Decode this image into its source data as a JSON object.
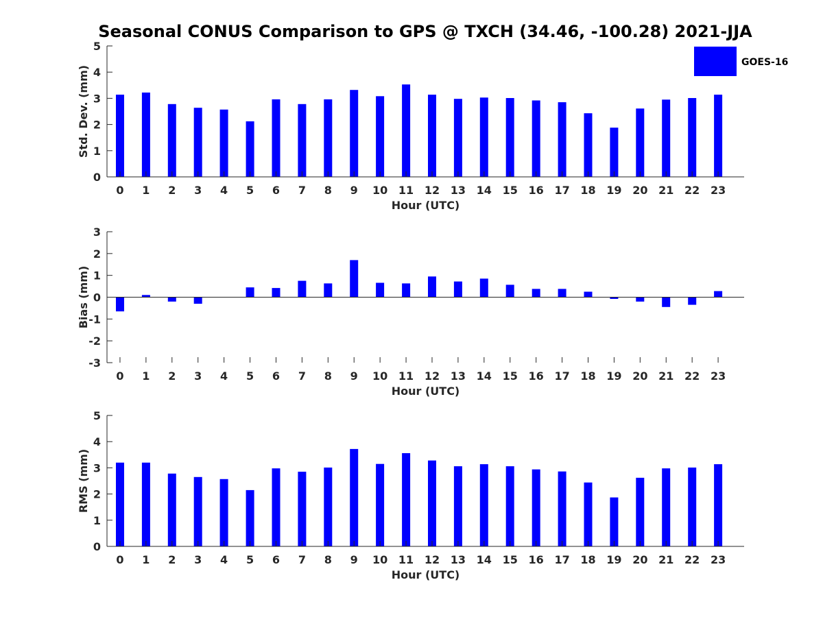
{
  "title": "Seasonal CONUS Comparison to GPS @ TXCH (34.46, -100.28) 2021-JJA",
  "legend": {
    "label": "GOES-16",
    "placement": "top-right"
  },
  "colors": {
    "bar": "#0000ff",
    "axis": "#262626",
    "text": "#262626"
  },
  "chart_data": [
    {
      "type": "bar",
      "title": "Seasonal CONUS Comparison to GPS @ TXCH (34.46, -100.28) 2021-JJA",
      "xlabel": "Hour (UTC)",
      "ylabel": "Std. Dev. (mm)",
      "categories": [
        0,
        1,
        2,
        3,
        4,
        5,
        6,
        7,
        8,
        9,
        10,
        11,
        12,
        13,
        14,
        15,
        16,
        17,
        18,
        19,
        20,
        21,
        22,
        23
      ],
      "ylim": [
        0,
        5
      ],
      "yticks": [
        0,
        1,
        2,
        3,
        4,
        5
      ],
      "series": [
        {
          "name": "GOES-16",
          "values": [
            3.14,
            3.22,
            2.78,
            2.64,
            2.57,
            2.12,
            2.96,
            2.78,
            2.96,
            3.32,
            3.08,
            3.53,
            3.14,
            2.98,
            3.03,
            3.01,
            2.92,
            2.85,
            2.43,
            1.88,
            2.61,
            2.95,
            3.01,
            3.14
          ]
        }
      ],
      "grid": false
    },
    {
      "type": "bar",
      "xlabel": "Hour (UTC)",
      "ylabel": "Bias (mm)",
      "categories": [
        0,
        1,
        2,
        3,
        4,
        5,
        6,
        7,
        8,
        9,
        10,
        11,
        12,
        13,
        14,
        15,
        16,
        17,
        18,
        19,
        20,
        21,
        22,
        23
      ],
      "ylim": [
        -3,
        3
      ],
      "yticks": [
        -3,
        -2,
        -1,
        0,
        1,
        2,
        3
      ],
      "series": [
        {
          "name": "GOES-16",
          "values": [
            -0.65,
            0.1,
            -0.2,
            -0.3,
            0,
            0.45,
            0.42,
            0.75,
            0.63,
            1.7,
            0.66,
            0.63,
            0.95,
            0.72,
            0.85,
            0.57,
            0.38,
            0.38,
            0.25,
            -0.08,
            -0.2,
            -0.45,
            -0.35,
            0.28
          ]
        }
      ],
      "grid": false
    },
    {
      "type": "bar",
      "xlabel": "Hour (UTC)",
      "ylabel": "RMS (mm)",
      "categories": [
        0,
        1,
        2,
        3,
        4,
        5,
        6,
        7,
        8,
        9,
        10,
        11,
        12,
        13,
        14,
        15,
        16,
        17,
        18,
        19,
        20,
        21,
        22,
        23
      ],
      "ylim": [
        0,
        5
      ],
      "yticks": [
        0,
        1,
        2,
        3,
        4,
        5
      ],
      "series": [
        {
          "name": "GOES-16",
          "values": [
            3.2,
            3.2,
            2.78,
            2.65,
            2.57,
            2.15,
            2.98,
            2.85,
            3.01,
            3.72,
            3.15,
            3.56,
            3.28,
            3.06,
            3.14,
            3.06,
            2.94,
            2.86,
            2.44,
            1.87,
            2.62,
            2.98,
            3.01,
            3.14
          ]
        }
      ],
      "grid": false
    }
  ]
}
